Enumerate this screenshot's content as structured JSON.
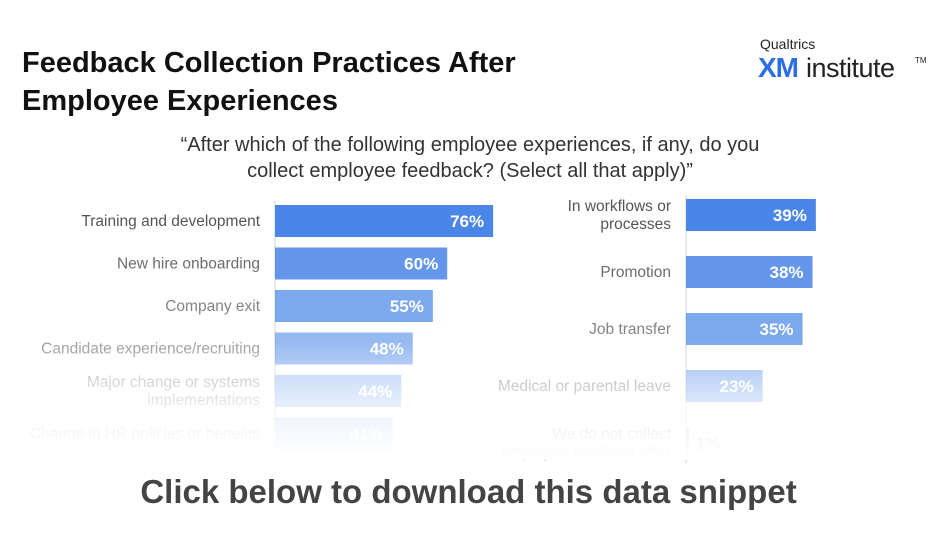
{
  "header": {
    "title_line1": "Feedback Collection Practices After",
    "title_line2": "Employee Experiences"
  },
  "logo": {
    "top_text": "Qualtrics",
    "xm": "XM",
    "institute": "institute",
    "tm": "TM"
  },
  "question": {
    "line1": "“After which of the following employee experiences, if any, do you",
    "line2": "collect employee feedback? (Select all that apply)”"
  },
  "cta": {
    "label": "Click below to download this data snippet"
  },
  "chart_data": [
    {
      "type": "bar",
      "orientation": "horizontal",
      "categories": [
        [
          "Training and development"
        ],
        [
          "New hire onboarding"
        ],
        [
          "Company exit"
        ],
        [
          "Candidate experience/recruiting"
        ],
        [
          "Major change or systems",
          "implementations"
        ],
        [
          "Change in HR policies or benefits"
        ]
      ],
      "values": [
        76,
        60,
        55,
        48,
        44,
        41
      ],
      "value_labels": [
        "76%",
        "60%",
        "55%",
        "48%",
        "44%",
        "41%"
      ],
      "unit": "%",
      "xlim": [
        0,
        100
      ],
      "color": "#4a86e8"
    },
    {
      "type": "bar",
      "orientation": "horizontal",
      "categories": [
        [
          "In workflows or",
          "processes"
        ],
        [
          "Promotion"
        ],
        [
          "Job transfer"
        ],
        [
          "Medical or parental leave"
        ],
        [
          "We do not collect",
          "employee feedback after"
        ]
      ],
      "values": [
        39,
        38,
        35,
        23,
        1
      ],
      "value_labels": [
        "39%",
        "38%",
        "35%",
        "23%",
        "1%"
      ],
      "unit": "%",
      "xlim": [
        0,
        100
      ],
      "color": "#4a86e8"
    }
  ]
}
